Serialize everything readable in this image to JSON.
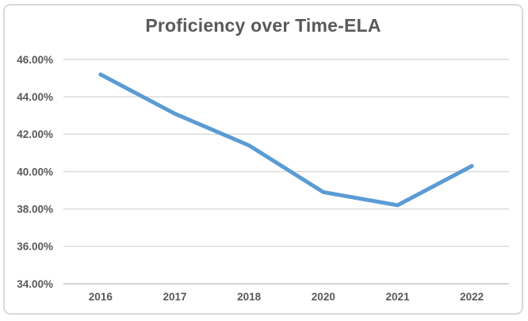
{
  "chart_data": {
    "type": "line",
    "title": "Proficiency over Time-ELA",
    "categories": [
      "2016",
      "2017",
      "2018",
      "2020",
      "2021",
      "2022"
    ],
    "values": [
      45.2,
      43.1,
      41.4,
      38.9,
      38.2,
      40.3
    ],
    "xlabel": "",
    "ylabel": "",
    "ylim": [
      34,
      46
    ],
    "ytick_step": 2,
    "ytick_labels": [
      "46.00%",
      "44.00%",
      "42.00%",
      "40.00%",
      "38.00%",
      "36.00%",
      "34.00%"
    ],
    "grid": true,
    "legend": "none",
    "line_color": "#5b9bd5"
  },
  "colors": {
    "title_text": "#595959",
    "tick_text": "#595959",
    "gridline": "#d9d9d9",
    "axis_line": "#c6c6c6",
    "frame_border": "#d9d9d9",
    "background": "#ffffff"
  }
}
